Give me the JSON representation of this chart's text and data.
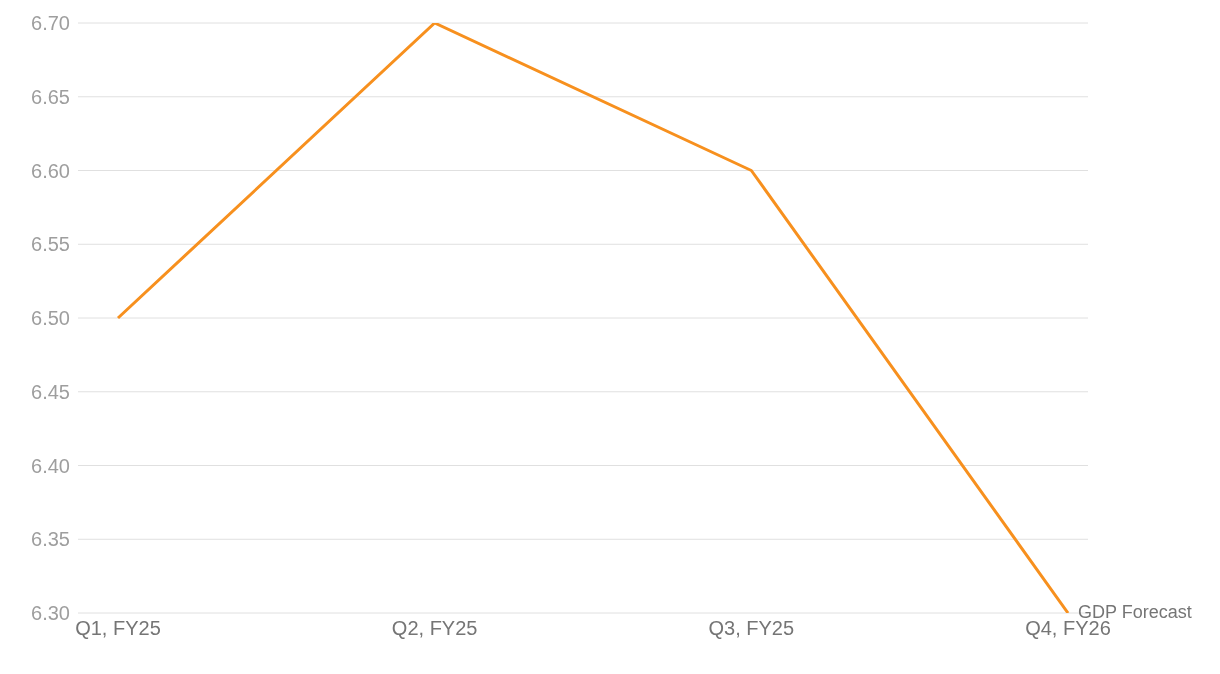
{
  "chart_data": {
    "type": "line",
    "categories": [
      "Q1, FY25",
      "Q2, FY25",
      "Q3, FY25",
      "Q4, FY26"
    ],
    "series": [
      {
        "name": "GDP Forecast",
        "color": "#f7901e",
        "values": [
          6.5,
          6.7,
          6.6,
          6.3
        ]
      }
    ],
    "ylim": [
      6.3,
      6.7
    ],
    "yticks": [
      {
        "value": 6.3,
        "label": "6.30"
      },
      {
        "value": 6.35,
        "label": "6.35"
      },
      {
        "value": 6.4,
        "label": "6.40"
      },
      {
        "value": 6.45,
        "label": "6.45"
      },
      {
        "value": 6.5,
        "label": "6.50"
      },
      {
        "value": 6.55,
        "label": "6.55"
      },
      {
        "value": 6.6,
        "label": "6.60"
      },
      {
        "value": 6.65,
        "label": "6.65"
      },
      {
        "value": 6.7,
        "label": "6.70"
      }
    ],
    "grid": "y"
  }
}
